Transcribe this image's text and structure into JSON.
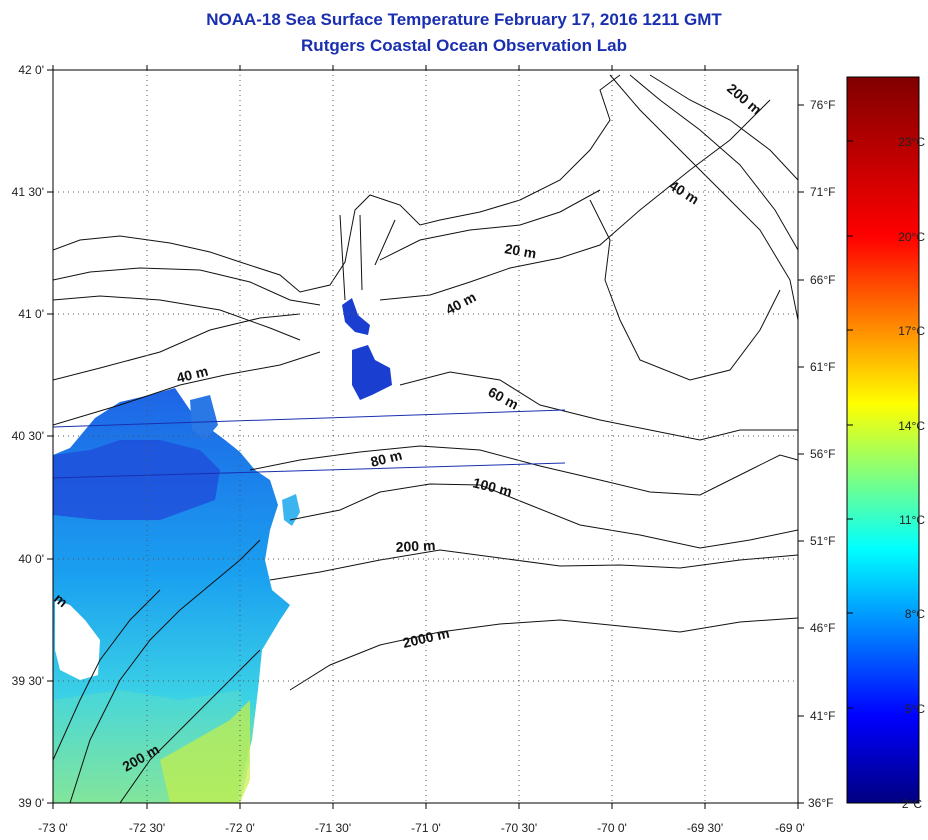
{
  "title": {
    "line1": "NOAA-18 Sea Surface Temperature February 17, 2016 1211 GMT",
    "line2": "Rutgers Coastal Ocean Observation Lab"
  },
  "axes": {
    "lat_labels": [
      "42 0'",
      "41 30'",
      "41 0'",
      "40 30'",
      "40 0'",
      "39 30'",
      "39 0'"
    ],
    "lon_labels": [
      "-73 0'",
      "-72 30'",
      "-72 0'",
      "-71 30'",
      "-71 0'",
      "-70 30'",
      "-70 0'",
      "-69 30'",
      "-69 0'"
    ]
  },
  "colorbar": {
    "celsius_labels": [
      "23°C",
      "20°C",
      "17°C",
      "14°C",
      "11°C",
      "8°C",
      "5°C",
      "2°C"
    ],
    "fahrenheit_labels": [
      "76°F",
      "71°F",
      "66°F",
      "61°F",
      "56°F",
      "51°F",
      "46°F",
      "41°F",
      "36°F"
    ]
  },
  "depth_labels": {
    "d200_ne": "200 m",
    "d40_ne": "40 m",
    "d20": "20 m",
    "d40_c": "40 m",
    "d40_w": "40 m",
    "d60": "60 m",
    "d80": "80 m",
    "d100": "100 m",
    "d200_c": "200 m",
    "d2000": "2000 m",
    "d200_sw": "200 m",
    "d_edge": "m"
  }
}
